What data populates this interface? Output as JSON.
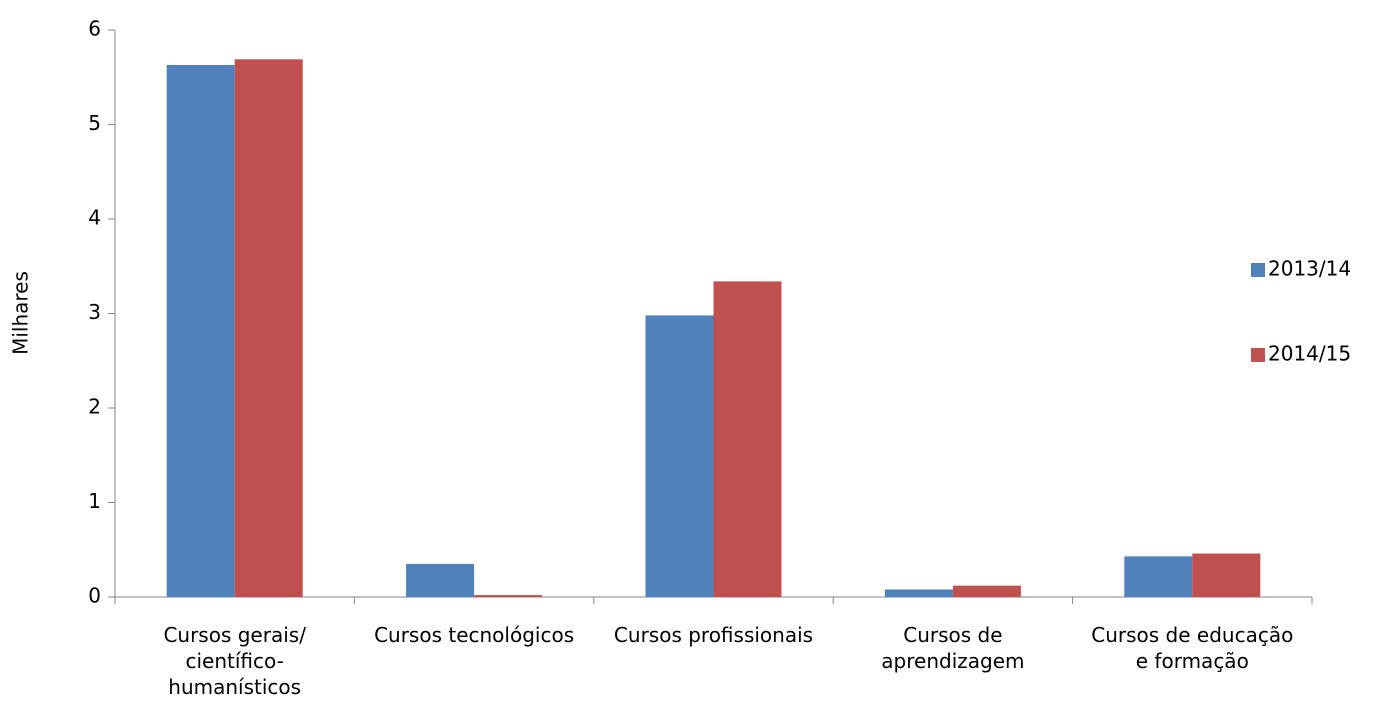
{
  "chart_data": {
    "type": "bar",
    "y_label": "Milhares",
    "categories": [
      "Cursos gerais/ científico-humanísticos",
      "Cursos tecnológicos",
      "Cursos profissionais",
      "Cursos de aprendizagem",
      "Cursos de educação e formação"
    ],
    "series": [
      {
        "name": "2013/14",
        "color": "#4f81bd",
        "values": [
          5.63,
          0.35,
          2.98,
          0.08,
          0.43
        ]
      },
      {
        "name": "2014/15",
        "color": "#c0504d",
        "values": [
          5.69,
          0.02,
          3.34,
          0.12,
          0.46
        ]
      }
    ],
    "ylim": [
      0,
      6
    ],
    "yticks": [
      0,
      1,
      2,
      3,
      4,
      5,
      6
    ],
    "legend": "right"
  }
}
